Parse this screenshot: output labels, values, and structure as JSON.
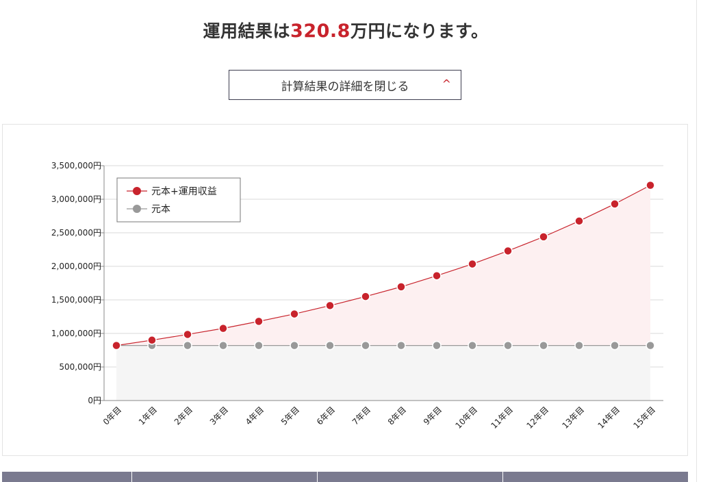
{
  "headline": {
    "prefix": "運用結果は",
    "amount": "320.8",
    "suffix": "万円になります。"
  },
  "toggle_button": {
    "label": "計算結果の詳細を閉じる",
    "icon": "chevron-up-icon"
  },
  "colors": {
    "accent": "#c8232c",
    "principal": "#999999",
    "area_total": "#fdf0f1",
    "area_principal": "#f5f5f5",
    "table_header": "#7a7a8f"
  },
  "chart_data": {
    "type": "line",
    "title": "",
    "xlabel": "",
    "ylabel": "",
    "categories": [
      "0年目",
      "1年目",
      "2年目",
      "3年目",
      "4年目",
      "5年目",
      "6年目",
      "7年目",
      "8年目",
      "9年目",
      "10年目",
      "11年目",
      "12年目",
      "13年目",
      "14年目",
      "15年目"
    ],
    "y_ticks": [
      0,
      500000,
      1000000,
      1500000,
      2000000,
      2500000,
      3000000,
      3500000
    ],
    "y_tick_labels": [
      "0円",
      "500,000円",
      "1,000,000円",
      "1,500,000円",
      "2,000,000円",
      "2,500,000円",
      "3,000,000円",
      "3,500,000円"
    ],
    "ylim": [
      0,
      3500000
    ],
    "grid": true,
    "legend_placement": "top-left",
    "series": [
      {
        "name": "元本+運用収益",
        "color": "#c8232c",
        "values": [
          820000,
          900000,
          985000,
          1075000,
          1180000,
          1290000,
          1415000,
          1550000,
          1695000,
          1860000,
          2035000,
          2230000,
          2440000,
          2675000,
          2930000,
          3208000
        ]
      },
      {
        "name": "元本",
        "color": "#999999",
        "values": [
          820000,
          820000,
          820000,
          820000,
          820000,
          820000,
          820000,
          820000,
          820000,
          820000,
          820000,
          820000,
          820000,
          820000,
          820000,
          820000
        ]
      }
    ]
  },
  "table": {
    "columns": 4
  }
}
